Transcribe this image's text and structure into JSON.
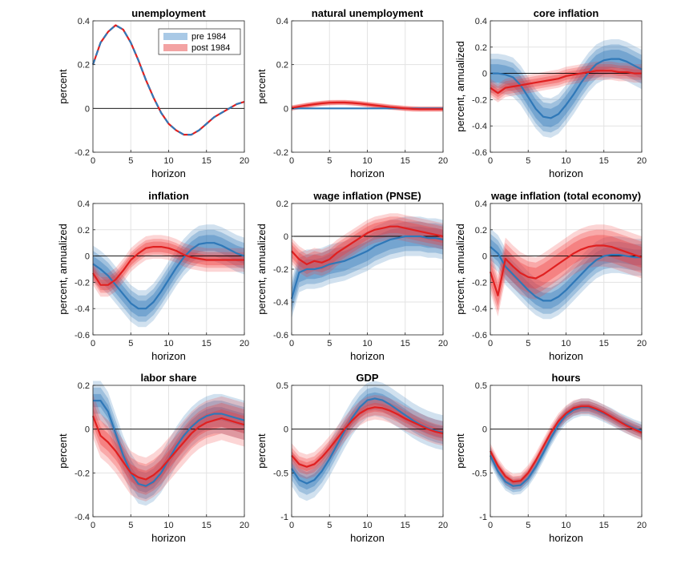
{
  "chart_data": [
    {
      "type": "line",
      "title": "unemployment",
      "xlabel": "horizon",
      "ylabel": "percent",
      "xlim": [
        0,
        20
      ],
      "ylim": [
        -0.2,
        0.4
      ],
      "xticks": [
        "0",
        "5",
        "10",
        "15",
        "20"
      ],
      "yticks": [
        "-0.2",
        "0",
        "0.2",
        "0.4"
      ],
      "legend": {
        "placement": "top-right",
        "entries": [
          "pre 1984",
          "post 1984"
        ]
      },
      "x": [
        0,
        1,
        2,
        3,
        4,
        5,
        6,
        7,
        8,
        9,
        10,
        11,
        12,
        13,
        14,
        15,
        16,
        17,
        18,
        19,
        20
      ],
      "series": [
        {
          "name": "pre 1984",
          "color": "#2f78b8",
          "dashed": true,
          "values": [
            0.2,
            0.3,
            0.35,
            0.38,
            0.36,
            0.3,
            0.22,
            0.13,
            0.05,
            -0.02,
            -0.07,
            -0.1,
            -0.12,
            -0.12,
            -0.1,
            -0.07,
            -0.04,
            -0.02,
            0.0,
            0.02,
            0.03
          ]
        },
        {
          "name": "post 1984",
          "color": "#e02020",
          "values": [
            0.2,
            0.3,
            0.35,
            0.38,
            0.36,
            0.3,
            0.22,
            0.13,
            0.05,
            -0.02,
            -0.07,
            -0.1,
            -0.12,
            -0.12,
            -0.1,
            -0.07,
            -0.04,
            -0.02,
            0.0,
            0.02,
            0.03
          ]
        }
      ]
    },
    {
      "type": "line",
      "title": "natural unemployment",
      "xlabel": "horizon",
      "ylabel": "percent",
      "xlim": [
        0,
        20
      ],
      "ylim": [
        -0.2,
        0.4
      ],
      "xticks": [
        "0",
        "5",
        "10",
        "15",
        "20"
      ],
      "yticks": [
        "-0.2",
        "0",
        "0.2",
        "0.4"
      ],
      "x": [
        0,
        1,
        2,
        3,
        4,
        5,
        6,
        7,
        8,
        9,
        10,
        11,
        12,
        13,
        14,
        15,
        16,
        17,
        18,
        19,
        20
      ],
      "series": [
        {
          "color": "#2f78b8",
          "values": [
            0,
            0,
            0,
            0,
            0,
            0,
            0,
            0,
            0,
            0,
            0,
            0,
            0,
            0,
            0,
            0,
            0,
            0,
            0,
            0,
            0
          ]
        },
        {
          "color": "#e02020",
          "values": [
            0.002,
            0.008,
            0.014,
            0.019,
            0.023,
            0.026,
            0.027,
            0.027,
            0.025,
            0.022,
            0.018,
            0.014,
            0.01,
            0.006,
            0.003,
            0.0,
            -0.002,
            -0.003,
            -0.003,
            -0.003,
            -0.003
          ],
          "band": [
            0.012,
            0.01,
            0.008
          ]
        }
      ]
    },
    {
      "type": "line",
      "title": "core inflation",
      "xlabel": "horizon",
      "ylabel": "percent, annualized",
      "xlim": [
        0,
        20
      ],
      "ylim": [
        -0.6,
        0.4
      ],
      "xticks": [
        "0",
        "5",
        "10",
        "15",
        "20"
      ],
      "yticks": [
        "-0.6",
        "-0.4",
        "-0.2",
        "0",
        "0.2",
        "0.4"
      ],
      "x": [
        0,
        1,
        2,
        3,
        4,
        5,
        6,
        7,
        8,
        9,
        10,
        11,
        12,
        13,
        14,
        15,
        16,
        17,
        18,
        19,
        20
      ],
      "series": [
        {
          "color": "#2f78b8",
          "values": [
            0.0,
            0.0,
            -0.01,
            -0.03,
            -0.09,
            -0.18,
            -0.27,
            -0.33,
            -0.34,
            -0.31,
            -0.24,
            -0.16,
            -0.07,
            0.01,
            0.07,
            0.1,
            0.11,
            0.11,
            0.09,
            0.06,
            0.03
          ],
          "band": [
            0.07,
            0.11,
            0.15
          ]
        },
        {
          "color": "#e02020",
          "values": [
            -0.11,
            -0.15,
            -0.11,
            -0.1,
            -0.09,
            -0.08,
            -0.07,
            -0.06,
            -0.05,
            -0.04,
            -0.02,
            -0.01,
            0.0,
            0.01,
            0.02,
            0.02,
            0.02,
            0.01,
            0.01,
            0.0,
            0.0
          ],
          "band": [
            0.03,
            0.05,
            0.07
          ]
        }
      ]
    },
    {
      "type": "line",
      "title": "inflation",
      "xlabel": "horizon",
      "ylabel": "percent, annualized",
      "xlim": [
        0,
        20
      ],
      "ylim": [
        -0.6,
        0.4
      ],
      "xticks": [
        "0",
        "5",
        "10",
        "15",
        "20"
      ],
      "yticks": [
        "-0.6",
        "-0.4",
        "-0.2",
        "0",
        "0.2",
        "0.4"
      ],
      "x": [
        0,
        1,
        2,
        3,
        4,
        5,
        6,
        7,
        8,
        9,
        10,
        11,
        12,
        13,
        14,
        15,
        16,
        17,
        18,
        19,
        20
      ],
      "series": [
        {
          "color": "#2f78b8",
          "values": [
            -0.06,
            -0.1,
            -0.15,
            -0.22,
            -0.29,
            -0.36,
            -0.4,
            -0.4,
            -0.35,
            -0.27,
            -0.18,
            -0.09,
            -0.01,
            0.05,
            0.09,
            0.1,
            0.1,
            0.08,
            0.05,
            0.02,
            0.0
          ],
          "band": [
            0.06,
            0.1,
            0.14
          ]
        },
        {
          "color": "#e02020",
          "values": [
            -0.13,
            -0.22,
            -0.22,
            -0.18,
            -0.11,
            -0.03,
            0.02,
            0.06,
            0.07,
            0.07,
            0.06,
            0.04,
            0.01,
            -0.01,
            -0.02,
            -0.03,
            -0.03,
            -0.03,
            -0.03,
            -0.03,
            -0.03
          ],
          "band": [
            0.04,
            0.06,
            0.09
          ]
        }
      ]
    },
    {
      "type": "line",
      "title": "wage inflation (PNSE)",
      "xlabel": "horizon",
      "ylabel": "percent, annualized",
      "xlim": [
        0,
        20
      ],
      "ylim": [
        -0.6,
        0.2
      ],
      "xticks": [
        "0",
        "5",
        "10",
        "15",
        "20"
      ],
      "yticks": [
        "-0.6",
        "-0.4",
        "-0.2",
        "0",
        "0.2"
      ],
      "x": [
        0,
        1,
        2,
        3,
        4,
        5,
        6,
        7,
        8,
        9,
        10,
        11,
        12,
        13,
        14,
        15,
        16,
        17,
        18,
        19,
        20
      ],
      "series": [
        {
          "color": "#2f78b8",
          "values": [
            -0.38,
            -0.22,
            -0.2,
            -0.2,
            -0.19,
            -0.17,
            -0.16,
            -0.15,
            -0.13,
            -0.11,
            -0.09,
            -0.06,
            -0.04,
            -0.02,
            -0.01,
            0.0,
            0.0,
            0.0,
            -0.01,
            -0.01,
            -0.02
          ],
          "band": [
            0.06,
            0.09,
            0.12
          ]
        },
        {
          "color": "#e02020",
          "values": [
            -0.09,
            -0.14,
            -0.17,
            -0.15,
            -0.16,
            -0.14,
            -0.1,
            -0.07,
            -0.04,
            -0.01,
            0.02,
            0.04,
            0.05,
            0.06,
            0.06,
            0.05,
            0.04,
            0.03,
            0.02,
            0.01,
            0.0
          ],
          "band": [
            0.04,
            0.06,
            0.08
          ]
        }
      ]
    },
    {
      "type": "line",
      "title": "wage inflation (total economy)",
      "xlabel": "horizon",
      "ylabel": "percent, annualized",
      "xlim": [
        0,
        20
      ],
      "ylim": [
        -0.6,
        0.4
      ],
      "xticks": [
        "0",
        "5",
        "10",
        "15",
        "20"
      ],
      "yticks": [
        "-0.6",
        "-0.4",
        "-0.2",
        "0",
        "0.2",
        "0.4"
      ],
      "x": [
        0,
        1,
        2,
        3,
        4,
        5,
        6,
        7,
        8,
        9,
        10,
        11,
        12,
        13,
        14,
        15,
        16,
        17,
        18,
        19,
        20
      ],
      "series": [
        {
          "color": "#2f78b8",
          "values": [
            0.07,
            0.02,
            -0.08,
            -0.14,
            -0.2,
            -0.26,
            -0.31,
            -0.34,
            -0.34,
            -0.31,
            -0.26,
            -0.2,
            -0.14,
            -0.08,
            -0.03,
            0.0,
            0.01,
            0.01,
            0.0,
            -0.01,
            -0.01
          ],
          "band": [
            0.06,
            0.1,
            0.14
          ]
        },
        {
          "color": "#e02020",
          "values": [
            -0.12,
            -0.3,
            -0.02,
            -0.08,
            -0.13,
            -0.16,
            -0.17,
            -0.14,
            -0.1,
            -0.06,
            -0.02,
            0.02,
            0.05,
            0.07,
            0.08,
            0.08,
            0.07,
            0.05,
            0.03,
            0.01,
            -0.01
          ],
          "band": [
            0.08,
            0.12,
            0.16
          ]
        }
      ]
    },
    {
      "type": "line",
      "title": "labor share",
      "xlabel": "horizon",
      "ylabel": "percent",
      "xlim": [
        0,
        20
      ],
      "ylim": [
        -0.4,
        0.2
      ],
      "xticks": [
        "0",
        "5",
        "10",
        "15",
        "20"
      ],
      "yticks": [
        "-0.4",
        "-0.2",
        "0",
        "0.2"
      ],
      "x": [
        0,
        1,
        2,
        3,
        4,
        5,
        6,
        7,
        8,
        9,
        10,
        11,
        12,
        13,
        14,
        15,
        16,
        17,
        18,
        19,
        20
      ],
      "series": [
        {
          "color": "#2f78b8",
          "values": [
            0.13,
            0.13,
            0.08,
            -0.02,
            -0.12,
            -0.2,
            -0.25,
            -0.26,
            -0.24,
            -0.2,
            -0.14,
            -0.08,
            -0.03,
            0.01,
            0.04,
            0.06,
            0.07,
            0.07,
            0.06,
            0.05,
            0.04
          ],
          "band": [
            0.03,
            0.06,
            0.09
          ]
        },
        {
          "color": "#e02020",
          "values": [
            0.06,
            -0.03,
            -0.06,
            -0.1,
            -0.15,
            -0.2,
            -0.22,
            -0.23,
            -0.21,
            -0.18,
            -0.14,
            -0.1,
            -0.06,
            -0.02,
            0.01,
            0.03,
            0.04,
            0.05,
            0.04,
            0.03,
            0.02
          ],
          "band": [
            0.04,
            0.07,
            0.1
          ]
        }
      ]
    },
    {
      "type": "line",
      "title": "GDP",
      "xlabel": "horizon",
      "ylabel": "percent",
      "xlim": [
        0,
        20
      ],
      "ylim": [
        -1,
        0.5
      ],
      "xticks": [
        "0",
        "5",
        "10",
        "15",
        "20"
      ],
      "yticks": [
        "-1",
        "-0.5",
        "0",
        "0.5"
      ],
      "x": [
        0,
        1,
        2,
        3,
        4,
        5,
        6,
        7,
        8,
        9,
        10,
        11,
        12,
        13,
        14,
        15,
        16,
        17,
        18,
        19,
        20
      ],
      "series": [
        {
          "color": "#2f78b8",
          "values": [
            -0.45,
            -0.58,
            -0.62,
            -0.58,
            -0.48,
            -0.34,
            -0.18,
            -0.02,
            0.13,
            0.25,
            0.33,
            0.35,
            0.33,
            0.28,
            0.22,
            0.16,
            0.1,
            0.05,
            0.01,
            -0.02,
            -0.04
          ],
          "band": [
            0.07,
            0.13,
            0.2
          ]
        },
        {
          "color": "#e02020",
          "values": [
            -0.3,
            -0.4,
            -0.43,
            -0.4,
            -0.32,
            -0.22,
            -0.11,
            0.0,
            0.1,
            0.18,
            0.23,
            0.25,
            0.24,
            0.21,
            0.17,
            0.12,
            0.08,
            0.04,
            0.0,
            -0.03,
            -0.05
          ],
          "band": [
            0.05,
            0.09,
            0.14
          ]
        }
      ]
    },
    {
      "type": "line",
      "title": "hours",
      "xlabel": "horizon",
      "ylabel": "percent",
      "xlim": [
        0,
        20
      ],
      "ylim": [
        -1,
        0.5
      ],
      "xticks": [
        "0",
        "5",
        "10",
        "15",
        "20"
      ],
      "yticks": [
        "-1",
        "-0.5",
        "0",
        "0.5"
      ],
      "x": [
        0,
        1,
        2,
        3,
        4,
        5,
        6,
        7,
        8,
        9,
        10,
        11,
        12,
        13,
        14,
        15,
        16,
        17,
        18,
        19,
        20
      ],
      "series": [
        {
          "color": "#2f78b8",
          "values": [
            -0.3,
            -0.48,
            -0.6,
            -0.65,
            -0.64,
            -0.56,
            -0.43,
            -0.27,
            -0.1,
            0.05,
            0.16,
            0.22,
            0.25,
            0.25,
            0.22,
            0.18,
            0.14,
            0.09,
            0.05,
            0.01,
            -0.02
          ],
          "band": [
            0.04,
            0.07,
            0.1
          ]
        },
        {
          "color": "#e02020",
          "values": [
            -0.25,
            -0.42,
            -0.54,
            -0.6,
            -0.59,
            -0.5,
            -0.36,
            -0.2,
            -0.04,
            0.09,
            0.18,
            0.24,
            0.26,
            0.26,
            0.23,
            0.19,
            0.14,
            0.09,
            0.04,
            0.0,
            -0.04
          ],
          "band": [
            0.03,
            0.06,
            0.09
          ]
        }
      ]
    }
  ]
}
